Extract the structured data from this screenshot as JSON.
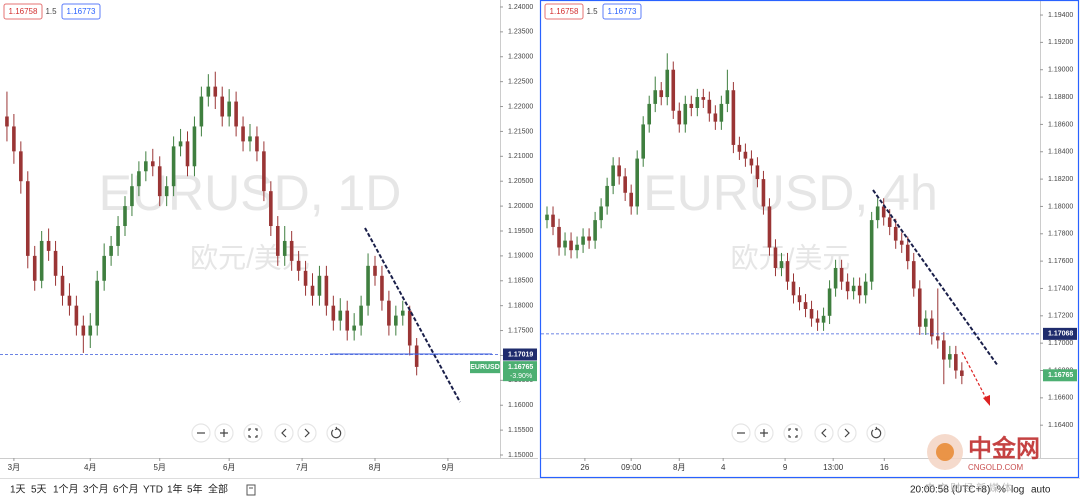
{
  "chart_data": [
    {
      "type": "candlestick",
      "title": "EURUSD, 1D",
      "subtitle": "欧元/美元",
      "bid": 1.16758,
      "spread": 1.5,
      "ask": 1.16773,
      "symbol_label": "EURUSD",
      "level": 1.17019,
      "last_price": 1.16765,
      "change": {
        "value": -3.9,
        "label": "-3.90%"
      },
      "up_color": "#3f7f3f",
      "down_color": "#9a3535",
      "x": [
        0,
        1,
        2,
        3,
        4,
        5,
        6,
        7,
        8,
        9,
        10,
        11,
        12,
        13,
        14,
        15,
        16,
        17,
        18,
        19,
        20,
        21,
        22,
        23,
        24,
        25,
        26,
        27,
        28,
        29,
        30,
        31,
        32,
        33,
        34,
        35,
        36,
        37,
        38,
        39,
        40,
        41,
        42,
        43,
        44,
        45,
        46,
        47,
        48,
        49,
        50,
        51,
        52,
        53,
        54,
        55,
        56,
        57,
        58,
        59
      ],
      "open": [
        1.218,
        1.216,
        1.211,
        1.205,
        1.19,
        1.185,
        1.193,
        1.191,
        1.186,
        1.182,
        1.18,
        1.176,
        1.174,
        1.176,
        1.185,
        1.19,
        1.192,
        1.196,
        1.2,
        1.204,
        1.207,
        1.209,
        1.208,
        1.202,
        1.204,
        1.212,
        1.213,
        1.208,
        1.216,
        1.222,
        1.224,
        1.222,
        1.218,
        1.221,
        1.216,
        1.213,
        1.214,
        1.211,
        1.203,
        1.196,
        1.19,
        1.193,
        1.189,
        1.187,
        1.184,
        1.182,
        1.186,
        1.18,
        1.177,
        1.179,
        1.175,
        1.176,
        1.18,
        1.188,
        1.186,
        1.181,
        1.176,
        1.178,
        1.179,
        1.172
      ],
      "high": [
        1.223,
        1.2185,
        1.213,
        1.207,
        1.192,
        1.195,
        1.1955,
        1.193,
        1.188,
        1.1845,
        1.182,
        1.178,
        1.1785,
        1.187,
        1.1925,
        1.194,
        1.198,
        1.202,
        1.2065,
        1.209,
        1.211,
        1.2115,
        1.21,
        1.206,
        1.214,
        1.2155,
        1.215,
        1.218,
        1.224,
        1.2265,
        1.227,
        1.224,
        1.2235,
        1.223,
        1.218,
        1.2165,
        1.216,
        1.213,
        1.205,
        1.198,
        1.196,
        1.195,
        1.191,
        1.189,
        1.1865,
        1.188,
        1.188,
        1.182,
        1.1815,
        1.181,
        1.1785,
        1.182,
        1.1905,
        1.19,
        1.188,
        1.183,
        1.18,
        1.181,
        1.18,
        1.1735
      ],
      "low": [
        1.213,
        1.2085,
        1.2025,
        1.1875,
        1.183,
        1.1835,
        1.189,
        1.184,
        1.18,
        1.178,
        1.174,
        1.1705,
        1.1715,
        1.174,
        1.183,
        1.188,
        1.19,
        1.194,
        1.198,
        1.202,
        1.205,
        1.206,
        1.2,
        1.2,
        1.202,
        1.21,
        1.206,
        1.206,
        1.214,
        1.22,
        1.2195,
        1.216,
        1.216,
        1.214,
        1.211,
        1.211,
        1.209,
        1.201,
        1.194,
        1.188,
        1.188,
        1.187,
        1.185,
        1.182,
        1.18,
        1.18,
        1.178,
        1.175,
        1.175,
        1.173,
        1.173,
        1.174,
        1.178,
        1.184,
        1.179,
        1.174,
        1.174,
        1.176,
        1.17,
        1.166
      ],
      "close": [
        1.216,
        1.211,
        1.205,
        1.19,
        1.185,
        1.193,
        1.191,
        1.186,
        1.182,
        1.18,
        1.176,
        1.174,
        1.176,
        1.185,
        1.19,
        1.192,
        1.196,
        1.2,
        1.204,
        1.207,
        1.209,
        1.208,
        1.202,
        1.204,
        1.212,
        1.213,
        1.208,
        1.216,
        1.222,
        1.224,
        1.222,
        1.218,
        1.221,
        1.216,
        1.213,
        1.214,
        1.211,
        1.203,
        1.196,
        1.19,
        1.193,
        1.189,
        1.187,
        1.184,
        1.182,
        1.186,
        1.18,
        1.177,
        1.179,
        1.175,
        1.176,
        1.18,
        1.188,
        1.186,
        1.181,
        1.176,
        1.178,
        1.179,
        1.172,
        1.1677
      ],
      "xlim": [
        -1,
        71
      ],
      "xticks": [
        {
          "value": 1,
          "label": "3月"
        },
        {
          "value": 12,
          "label": "4月"
        },
        {
          "value": 22,
          "label": "5月"
        },
        {
          "value": 32,
          "label": "6月"
        },
        {
          "value": 42.5,
          "label": "7月"
        },
        {
          "value": 53,
          "label": "8月"
        },
        {
          "value": 63.5,
          "label": "9月"
        }
      ],
      "ylim": [
        1.1494,
        1.2414
      ],
      "yticks": [
        {
          "value": 1.24,
          "label": "1.24000"
        },
        {
          "value": 1.235,
          "label": "1.23500"
        },
        {
          "value": 1.23,
          "label": "1.23000"
        },
        {
          "value": 1.225,
          "label": "1.22500"
        },
        {
          "value": 1.22,
          "label": "1.22000"
        },
        {
          "value": 1.215,
          "label": "1.21500"
        },
        {
          "value": 1.21,
          "label": "1.21000"
        },
        {
          "value": 1.205,
          "label": "1.20500"
        },
        {
          "value": 1.2,
          "label": "1.20000"
        },
        {
          "value": 1.195,
          "label": "1.19500"
        },
        {
          "value": 1.19,
          "label": "1.19000"
        },
        {
          "value": 1.185,
          "label": "1.18500"
        },
        {
          "value": 1.18,
          "label": "1.18000"
        },
        {
          "value": 1.175,
          "label": "1.17500"
        },
        {
          "value": 1.17,
          "label": "1.17000"
        },
        {
          "value": 1.165,
          "label": "1.16500"
        },
        {
          "value": 1.16,
          "label": "1.16000"
        },
        {
          "value": 1.155,
          "label": "1.15500"
        },
        {
          "value": 1.15,
          "label": "1.15000"
        }
      ]
    },
    {
      "type": "candlestick",
      "title": "EURUSD, 4h",
      "subtitle": "欧元/美元",
      "bid": 1.16758,
      "spread": 1.5,
      "ask": 1.16773,
      "level": 1.17068,
      "last_price": 1.16765,
      "up_color": "#3f7f3f",
      "down_color": "#9a3535",
      "x": [
        0,
        1,
        2,
        3,
        4,
        5,
        6,
        7,
        8,
        9,
        10,
        11,
        12,
        13,
        14,
        15,
        16,
        17,
        18,
        19,
        20,
        21,
        22,
        23,
        24,
        25,
        26,
        27,
        28,
        29,
        30,
        31,
        32,
        33,
        34,
        35,
        36,
        37,
        38,
        39,
        40,
        41,
        42,
        43,
        44,
        45,
        46,
        47,
        48,
        49,
        50,
        51,
        52,
        53,
        54,
        55,
        56,
        57,
        58,
        59,
        60,
        61,
        62,
        63,
        64,
        65,
        66,
        67,
        68,
        69
      ],
      "open": [
        1.179,
        1.1794,
        1.1785,
        1.177,
        1.1775,
        1.1768,
        1.1772,
        1.1778,
        1.1775,
        1.179,
        1.18,
        1.1815,
        1.183,
        1.1822,
        1.181,
        1.18,
        1.1835,
        1.186,
        1.1875,
        1.1885,
        1.188,
        1.19,
        1.187,
        1.186,
        1.1875,
        1.1872,
        1.188,
        1.1878,
        1.1868,
        1.1862,
        1.1875,
        1.1885,
        1.1845,
        1.184,
        1.1835,
        1.183,
        1.182,
        1.18,
        1.177,
        1.1755,
        1.176,
        1.1745,
        1.1735,
        1.173,
        1.1725,
        1.1718,
        1.1715,
        1.172,
        1.174,
        1.1755,
        1.1745,
        1.1738,
        1.1742,
        1.1735,
        1.1745,
        1.179,
        1.18,
        1.1792,
        1.1785,
        1.1775,
        1.1772,
        1.176,
        1.174,
        1.1712,
        1.1718,
        1.1705,
        1.1702,
        1.1688,
        1.1692,
        1.168
      ],
      "high": [
        1.18,
        1.18,
        1.1791,
        1.1781,
        1.1781,
        1.1778,
        1.1784,
        1.1784,
        1.1796,
        1.1806,
        1.1821,
        1.1836,
        1.1836,
        1.1828,
        1.1816,
        1.1841,
        1.1866,
        1.1881,
        1.1895,
        1.1891,
        1.1912,
        1.1906,
        1.1876,
        1.1881,
        1.1881,
        1.1886,
        1.1886,
        1.1884,
        1.1874,
        1.1881,
        1.19,
        1.1891,
        1.1851,
        1.1846,
        1.1841,
        1.1836,
        1.1826,
        1.1806,
        1.1776,
        1.1766,
        1.1766,
        1.1751,
        1.1741,
        1.1736,
        1.1731,
        1.1724,
        1.1726,
        1.1746,
        1.1761,
        1.1761,
        1.1751,
        1.1748,
        1.1748,
        1.1751,
        1.1796,
        1.1806,
        1.1806,
        1.1798,
        1.1791,
        1.1781,
        1.1778,
        1.1766,
        1.1746,
        1.1724,
        1.1724,
        1.174,
        1.1708,
        1.1698,
        1.1698,
        1.1686
      ],
      "low": [
        1.1784,
        1.1779,
        1.1764,
        1.1764,
        1.1762,
        1.1762,
        1.1766,
        1.1769,
        1.1769,
        1.1784,
        1.1794,
        1.1809,
        1.1816,
        1.1804,
        1.1794,
        1.1794,
        1.1829,
        1.1854,
        1.1869,
        1.1874,
        1.1874,
        1.1864,
        1.1854,
        1.1854,
        1.1866,
        1.1866,
        1.1872,
        1.1862,
        1.1856,
        1.1856,
        1.1869,
        1.1839,
        1.1834,
        1.1829,
        1.1824,
        1.1814,
        1.1794,
        1.1764,
        1.1749,
        1.1749,
        1.1739,
        1.1729,
        1.1724,
        1.1719,
        1.1712,
        1.1709,
        1.1709,
        1.1714,
        1.1734,
        1.1739,
        1.1732,
        1.1732,
        1.1729,
        1.1729,
        1.1739,
        1.1784,
        1.1786,
        1.1779,
        1.1769,
        1.1766,
        1.1754,
        1.1734,
        1.1706,
        1.1706,
        1.1699,
        1.1696,
        1.167,
        1.1682,
        1.1674,
        1.167
      ],
      "close": [
        1.1794,
        1.1785,
        1.177,
        1.1775,
        1.1768,
        1.1772,
        1.1778,
        1.1775,
        1.179,
        1.18,
        1.1815,
        1.183,
        1.1822,
        1.181,
        1.18,
        1.1835,
        1.186,
        1.1875,
        1.1885,
        1.188,
        1.19,
        1.187,
        1.186,
        1.1875,
        1.1872,
        1.188,
        1.1878,
        1.1868,
        1.1862,
        1.1875,
        1.1885,
        1.1845,
        1.184,
        1.1835,
        1.183,
        1.182,
        1.18,
        1.177,
        1.1755,
        1.176,
        1.1745,
        1.1735,
        1.173,
        1.1725,
        1.1718,
        1.1715,
        1.172,
        1.174,
        1.1755,
        1.1745,
        1.1738,
        1.1742,
        1.1735,
        1.1745,
        1.179,
        1.18,
        1.1792,
        1.1785,
        1.1775,
        1.1772,
        1.176,
        1.174,
        1.1712,
        1.1718,
        1.1705,
        1.1702,
        1.1688,
        1.1692,
        1.168,
        1.1676
      ],
      "xlim": [
        -1,
        82
      ],
      "xticks": [
        {
          "value": 6.3,
          "label": "26"
        },
        {
          "value": 14,
          "label": "09:00"
        },
        {
          "value": 22,
          "label": "8月"
        },
        {
          "value": 29.3,
          "label": "4"
        },
        {
          "value": 39.6,
          "label": "9"
        },
        {
          "value": 47.6,
          "label": "13:00"
        },
        {
          "value": 56.1,
          "label": "16"
        }
      ],
      "ylim": [
        1.1616,
        1.1951
      ],
      "yticks": [
        {
          "value": 1.194,
          "label": "1.19400"
        },
        {
          "value": 1.192,
          "label": "1.19200"
        },
        {
          "value": 1.19,
          "label": "1.19000"
        },
        {
          "value": 1.188,
          "label": "1.18800"
        },
        {
          "value": 1.186,
          "label": "1.18600"
        },
        {
          "value": 1.184,
          "label": "1.18400"
        },
        {
          "value": 1.182,
          "label": "1.18200"
        },
        {
          "value": 1.18,
          "label": "1.18000"
        },
        {
          "value": 1.178,
          "label": "1.17800"
        },
        {
          "value": 1.176,
          "label": "1.17600"
        },
        {
          "value": 1.174,
          "label": "1.17400"
        },
        {
          "value": 1.172,
          "label": "1.17200"
        },
        {
          "value": 1.17,
          "label": "1.17000"
        },
        {
          "value": 1.168,
          "label": "1.16800"
        },
        {
          "value": 1.166,
          "label": "1.16600"
        },
        {
          "value": 1.164,
          "label": "1.16400"
        }
      ]
    }
  ],
  "toolbar": {
    "ranges": [
      "1天",
      "5天",
      "1个月",
      "3个月",
      "6个月",
      "YTD",
      "1年",
      "5年",
      "全部"
    ],
    "time": "20:00:58 (UTC+8)",
    "percent": "%",
    "log": "log",
    "auto": "auto"
  },
  "logo": {
    "name": "中金网",
    "url": "CNGOLD.COM",
    "tagline": "中 文 财 经 新 媒 体"
  }
}
